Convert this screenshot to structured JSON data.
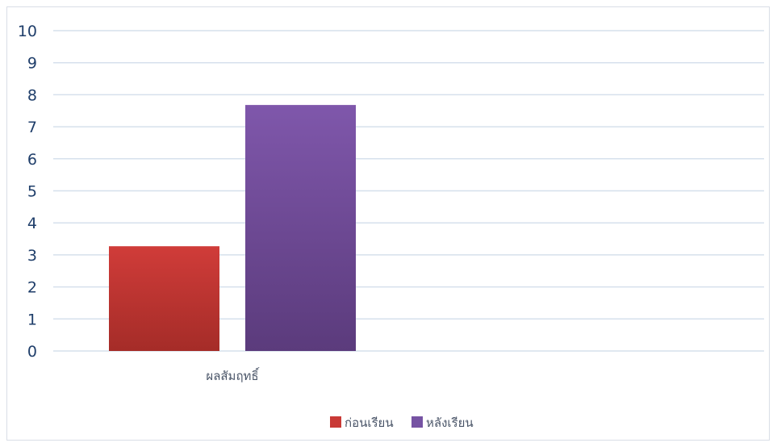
{
  "chart_data": {
    "type": "bar",
    "categories": [
      "ผลสัมฤทธิ์"
    ],
    "series": [
      {
        "name": "ก่อนเรียน",
        "values": [
          3.27
        ],
        "color": "#c93a36"
      },
      {
        "name": "หลังเรียน",
        "values": [
          7.68
        ],
        "color": "#7653a3"
      }
    ],
    "ylim": [
      0,
      10
    ],
    "yticks": [
      0,
      1,
      2,
      3,
      4,
      5,
      6,
      7,
      8,
      9,
      10
    ],
    "grid": true,
    "legend_position": "bottom"
  }
}
